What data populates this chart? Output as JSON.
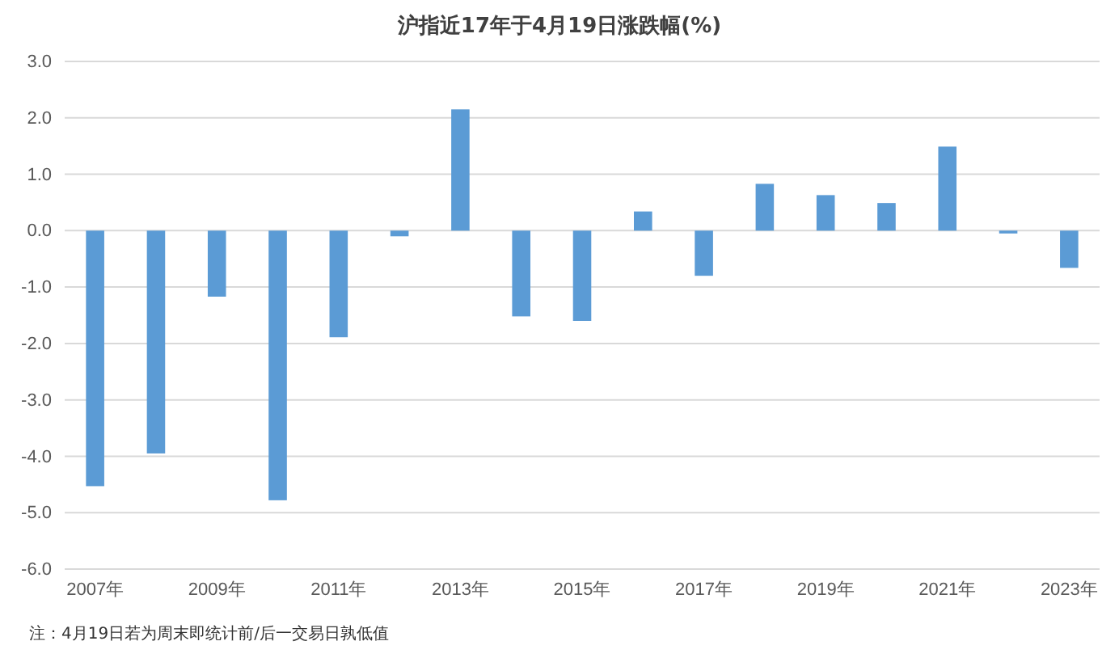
{
  "chart_data": {
    "type": "bar",
    "title": "沪指近17年于4月19日涨跌幅(%)",
    "categories": [
      "2007年",
      null,
      "2009年",
      null,
      "2011年",
      null,
      "2013年",
      null,
      "2015年",
      null,
      "2017年",
      null,
      "2019年",
      null,
      "2021年",
      null,
      "2023年"
    ],
    "values": [
      -4.53,
      -3.95,
      -1.17,
      -4.78,
      -1.89,
      -0.1,
      2.15,
      -1.52,
      -1.6,
      0.34,
      -0.8,
      0.83,
      0.63,
      0.49,
      1.49,
      -0.05,
      -0.66
    ],
    "color": "#5b9bd5",
    "ylim": [
      -6,
      3
    ],
    "yticks": [
      {
        "value": 3,
        "label": "3.0"
      },
      {
        "value": 2,
        "label": "2.0"
      },
      {
        "value": 1,
        "label": "1.0"
      },
      {
        "value": 0,
        "label": "0.0"
      },
      {
        "value": -1,
        "label": "-1.0"
      },
      {
        "value": -2,
        "label": "-2.0"
      },
      {
        "value": -3,
        "label": "-3.0"
      },
      {
        "value": -4,
        "label": "-4.0"
      },
      {
        "value": -5,
        "label": "-5.0"
      },
      {
        "value": -6,
        "label": "-6.0"
      }
    ],
    "grid": "y",
    "annotations": [
      "注：4月19日若为周末即统计前/后一交易日孰低值"
    ]
  }
}
